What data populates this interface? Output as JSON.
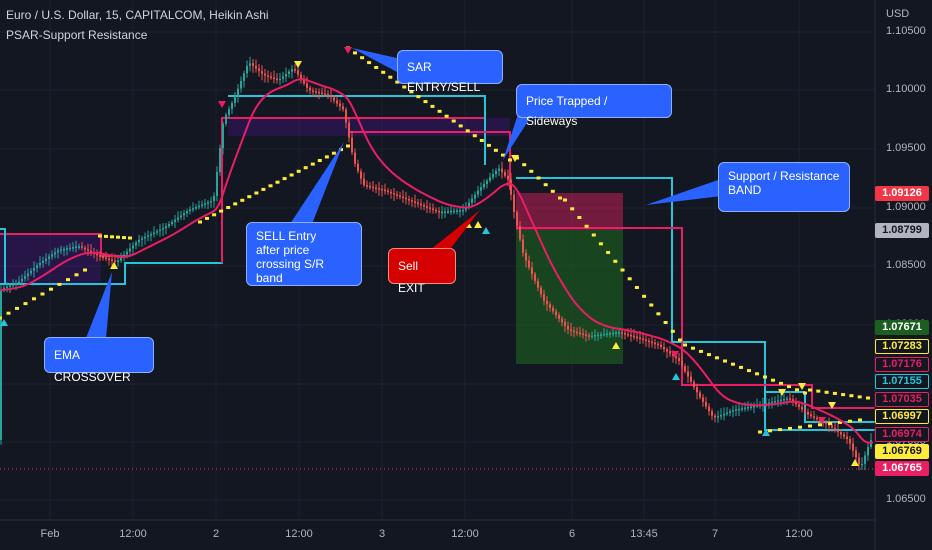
{
  "header": {
    "symbol_line": "Euro / U.S. Dollar, 15, CAPITALCOM, Heikin Ashi",
    "indicator_line": "PSAR-Support Resistance",
    "currency": "USD"
  },
  "y_axis": {
    "ticks": [
      "1.10500",
      "1.10000",
      "1.09500",
      "1.09000",
      "1.08500",
      "1.08000",
      "1.07500",
      "1.07000",
      "1.06500"
    ]
  },
  "x_axis": {
    "ticks": [
      "Feb",
      "12:00",
      "2",
      "12:00",
      "3",
      "12:00",
      "6",
      "13:45",
      "7",
      "12:00"
    ]
  },
  "price_tags": [
    {
      "label": "1.09126",
      "bg": "#f23645",
      "fg": "#ffffff"
    },
    {
      "label": "1.08799",
      "bg": "#b2b5be",
      "fg": "#131722"
    },
    {
      "label": "1.07671",
      "bg": "#1b5e20",
      "fg": "#ffffff"
    },
    {
      "label": "1.07283",
      "bg": "#131722",
      "fg": "#ffeb3b",
      "border": "#ffeb3b"
    },
    {
      "label": "1.07176",
      "bg": "#131722",
      "fg": "#e91e63",
      "border": "#e91e63"
    },
    {
      "label": "1.07155",
      "bg": "#131722",
      "fg": "#26c6da",
      "border": "#26c6da"
    },
    {
      "label": "1.07035",
      "bg": "#131722",
      "fg": "#e91e63",
      "border": "#e91e63"
    },
    {
      "label": "1.06997",
      "bg": "#131722",
      "fg": "#ffeb3b",
      "border": "#ffeb3b"
    },
    {
      "label": "1.06974",
      "bg": "#131722",
      "fg": "#e91e63",
      "border": "#e91e63"
    },
    {
      "label": "1.06769",
      "bg": "#ffeb3b",
      "fg": "#131722"
    },
    {
      "label": "1.06765",
      "bg": "#e91e63",
      "fg": "#ffffff"
    }
  ],
  "annotations": {
    "sar_entry": "SAR ENTRY/SELL",
    "price_trapped": "Price Trapped / Sideways",
    "support_resistance": "Support / Resistance\nBAND",
    "sell_entry": "SELL Entry\nafter price\ncrossing S/R band",
    "sell_exit": "Sell EXIT",
    "ema_crossover": "EMA CROSSOVER"
  },
  "colors": {
    "background": "#131722",
    "grid": "#1e222d",
    "candle_up": "#26a69a",
    "candle_down": "#ef5350",
    "ema": "#e91e63",
    "sar": "#ffeb3b",
    "resistance": "#e91e63",
    "support": "#26c6da",
    "callout_blue": "#2962ff",
    "callout_red": "#d50000"
  }
}
